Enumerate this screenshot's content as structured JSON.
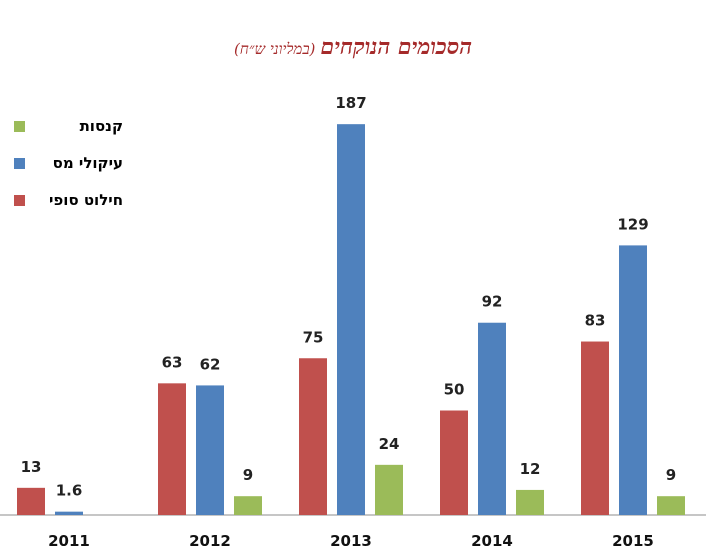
{
  "chart_data": {
    "type": "bar",
    "title": "הסכומים הנוקחים",
    "subtitle": "(במליוני ש״ח)",
    "categories": [
      "2011",
      "2012",
      "2013",
      "2014",
      "2015"
    ],
    "series": [
      {
        "name": "חילוט סופי",
        "color": "#c0504d",
        "values": [
          13,
          63,
          75,
          50,
          83
        ],
        "labels": [
          "13",
          "63",
          "75",
          "50",
          "83"
        ]
      },
      {
        "name": "עיקולי מס",
        "color": "#4f81bd",
        "values": [
          1.6,
          62,
          187,
          92,
          129
        ],
        "labels": [
          "1.6",
          "62",
          "187",
          "92",
          "129"
        ]
      },
      {
        "name": "קנסות",
        "color": "#9bbb59",
        "values": [
          null,
          9,
          24,
          12,
          9
        ],
        "labels": [
          null,
          "9",
          "24",
          "12",
          "9"
        ]
      }
    ],
    "legend_order": [
      2,
      1,
      0
    ],
    "legend_position": "top-left",
    "ylim": [
      0,
      200
    ],
    "grid": false
  }
}
